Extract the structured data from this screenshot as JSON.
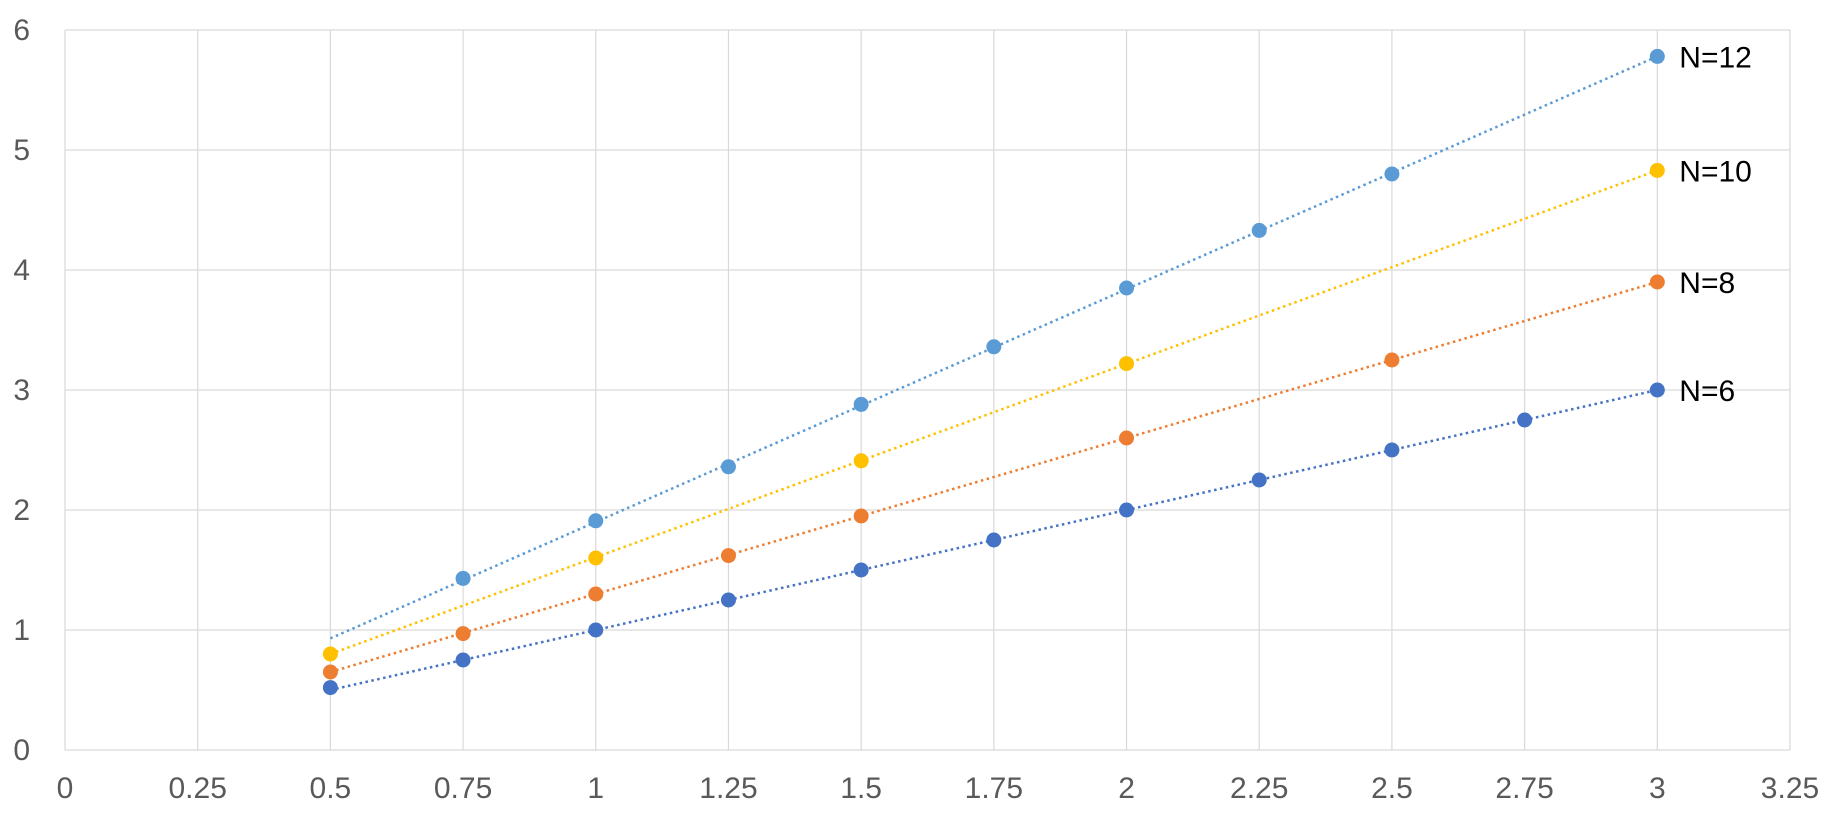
{
  "chart_data": {
    "type": "scatter",
    "title": "",
    "xlabel": "",
    "ylabel": "",
    "xlim": [
      0,
      3.25
    ],
    "ylim": [
      0,
      6
    ],
    "x_ticks": [
      "0",
      "0.25",
      "0.5",
      "0.75",
      "1",
      "1.25",
      "1.5",
      "1.75",
      "2",
      "2.25",
      "2.5",
      "2.75",
      "3",
      "3.25"
    ],
    "y_ticks": [
      "0",
      "1",
      "2",
      "3",
      "4",
      "5",
      "6"
    ],
    "grid": true,
    "legend": "none",
    "trendline_style": "dotted",
    "series": [
      {
        "name": "N=6",
        "color": "#4472C4",
        "trend": [
          [
            0.5,
            0.5
          ],
          [
            3,
            3.0
          ]
        ],
        "points": [
          [
            0.5,
            0.52
          ],
          [
            0.75,
            0.75
          ],
          [
            1,
            1.0
          ],
          [
            1.25,
            1.25
          ],
          [
            1.5,
            1.5
          ],
          [
            1.75,
            1.75
          ],
          [
            2,
            2.0
          ],
          [
            2.25,
            2.25
          ],
          [
            2.5,
            2.5
          ],
          [
            2.75,
            2.75
          ],
          [
            3,
            3.0
          ]
        ]
      },
      {
        "name": "N=8",
        "color": "#ED7D31",
        "trend": [
          [
            0.5,
            0.65
          ],
          [
            3,
            3.9
          ]
        ],
        "points": [
          [
            0.5,
            0.65
          ],
          [
            0.75,
            0.97
          ],
          [
            1,
            1.3
          ],
          [
            1.25,
            1.62
          ],
          [
            1.5,
            1.95
          ],
          [
            2,
            2.6
          ],
          [
            2.5,
            3.25
          ],
          [
            3,
            3.9
          ]
        ]
      },
      {
        "name": "N=10",
        "color": "#FFC000",
        "trend": [
          [
            0.5,
            0.8
          ],
          [
            3,
            4.83
          ]
        ],
        "points": [
          [
            0.5,
            0.8
          ],
          [
            1,
            1.6
          ],
          [
            1.5,
            2.41
          ],
          [
            2,
            3.22
          ],
          [
            3,
            4.83
          ]
        ]
      },
      {
        "name": "N=12",
        "color": "#5B9BD5",
        "trend": [
          [
            0.5,
            0.93
          ],
          [
            3,
            5.78
          ]
        ],
        "points": [
          [
            0.75,
            1.43
          ],
          [
            1,
            1.91
          ],
          [
            1.25,
            2.36
          ],
          [
            1.5,
            2.88
          ],
          [
            1.75,
            3.36
          ],
          [
            2,
            3.85
          ],
          [
            2.25,
            4.33
          ],
          [
            2.5,
            4.8
          ],
          [
            3,
            5.78
          ]
        ]
      }
    ]
  },
  "gridline_color": "#D9D9D9"
}
